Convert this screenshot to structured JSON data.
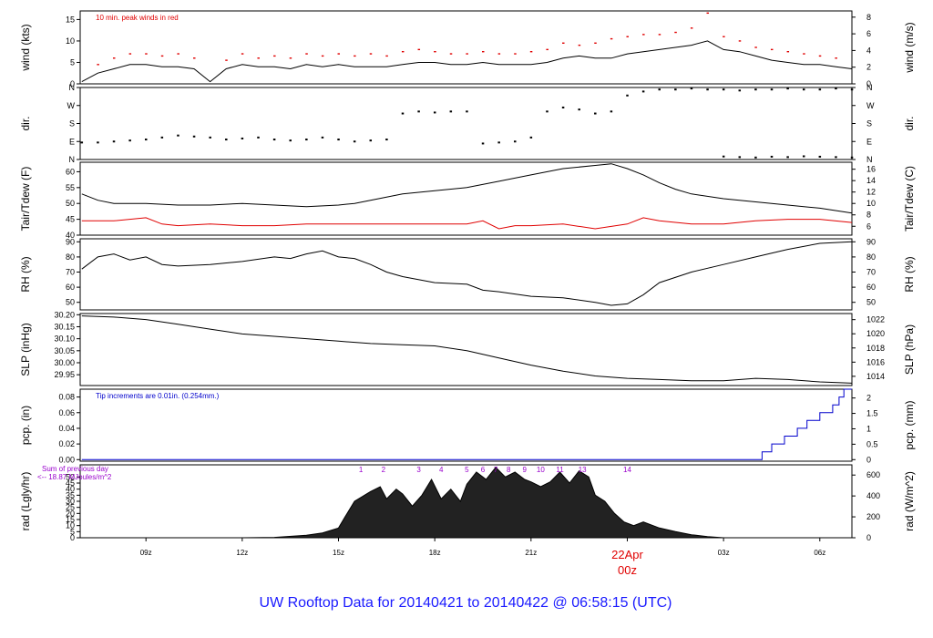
{
  "footer_title": "UW Rooftop Data for 20140421  to  20140422 @ 06:58:15  (UTC)",
  "colors": {
    "black": "#000000",
    "red": "#e00000",
    "blue": "#0000cc",
    "purple": "#9900cc",
    "footer": "#1a1aff"
  },
  "time_axis": {
    "x_start_hours": 6.95,
    "x_end_hours": 31.0,
    "ticks": [
      {
        "hours": 9,
        "label": "09z"
      },
      {
        "hours": 12,
        "label": "12z"
      },
      {
        "hours": 15,
        "label": "15z"
      },
      {
        "hours": 18,
        "label": "18z"
      },
      {
        "hours": 21,
        "label": "21z"
      },
      {
        "hours": 24,
        "label": "00z",
        "highlight": "22Apr"
      },
      {
        "hours": 27,
        "label": "03z"
      },
      {
        "hours": 30,
        "label": "06z"
      }
    ]
  },
  "chart_data": [
    {
      "type": "line",
      "id": "wind",
      "ylabel_left": "wind (kts)",
      "ylabel_right": "wind (m/s)",
      "ylim": [
        0,
        17
      ],
      "yticks_left": [
        0,
        5,
        10,
        15
      ],
      "yticks_right": [
        0,
        2,
        4,
        6,
        8
      ],
      "right_scale": 0.5144,
      "annotation": "10 min. peak winds in red",
      "series": [
        {
          "x": [
            7.0,
            7.5,
            8.0,
            8.5,
            9.0,
            9.5,
            10.0,
            10.5,
            11.0,
            11.5,
            12.0,
            12.5,
            13.0,
            13.5,
            14.0,
            14.5,
            15.0,
            15.5,
            16.0,
            16.5,
            17.0,
            17.5,
            18.0,
            18.5,
            19.0,
            19.5,
            20.0,
            20.5,
            21.0,
            21.5,
            22.0,
            22.5,
            23.0,
            23.5,
            24.0,
            24.5,
            25.0,
            25.5,
            26.0,
            26.5,
            27.0,
            27.5,
            28.0,
            28.5,
            29.0,
            29.5,
            30.0,
            30.5,
            31.0
          ],
          "values": [
            0.5,
            2.5,
            3.5,
            4.5,
            4.5,
            4.0,
            4.0,
            3.5,
            0.5,
            3.5,
            4.5,
            4.0,
            4.0,
            3.5,
            4.5,
            4.0,
            4.5,
            4.0,
            4.0,
            4.0,
            4.5,
            5.0,
            5.0,
            4.5,
            4.5,
            5.0,
            4.5,
            4.5,
            4.5,
            5.0,
            6.0,
            6.5,
            6.0,
            6.0,
            7.0,
            7.5,
            8.0,
            8.5,
            9.0,
            10.0,
            8.0,
            7.5,
            6.5,
            5.5,
            5.0,
            4.5,
            4.5,
            4.0,
            3.5
          ]
        },
        {
          "name": "10 min. peak winds in red",
          "x": [
            7.5,
            8.0,
            8.5,
            9.0,
            9.5,
            10.0,
            10.5,
            11.5,
            12.0,
            12.5,
            13.0,
            13.5,
            14.0,
            14.5,
            15.0,
            15.5,
            16.0,
            16.5,
            17.0,
            17.5,
            18.0,
            18.5,
            19.0,
            19.5,
            20.0,
            20.5,
            21.0,
            21.5,
            22.0,
            22.5,
            23.0,
            23.5,
            24.0,
            24.5,
            25.0,
            25.5,
            26.0,
            26.5,
            27.0,
            27.5,
            28.0,
            28.5,
            29.0,
            29.5,
            30.0,
            30.5
          ],
          "values": [
            4.5,
            6.0,
            7.0,
            7.0,
            6.5,
            7.0,
            6.0,
            5.5,
            7.0,
            6.0,
            6.5,
            6.0,
            7.0,
            6.5,
            7.0,
            6.5,
            7.0,
            6.5,
            7.5,
            8.0,
            7.5,
            7.0,
            7.0,
            7.5,
            7.0,
            7.0,
            7.5,
            8.0,
            9.5,
            9.0,
            9.5,
            10.5,
            11.0,
            11.5,
            11.5,
            12.0,
            13.0,
            16.5,
            11.0,
            10.0,
            8.5,
            8.0,
            7.5,
            7.0,
            6.5,
            6.0
          ]
        }
      ]
    },
    {
      "type": "scatter",
      "id": "dir",
      "ylabel_left": "dir.",
      "ylabel_right": "dir.",
      "ylim": [
        0,
        360
      ],
      "tick_labels": [
        "N",
        "E",
        "S",
        "W",
        "N"
      ],
      "tick_values": [
        0,
        90,
        180,
        270,
        360
      ],
      "series": [
        {
          "x": [
            7.0,
            7.5,
            8.0,
            8.5,
            9.0,
            9.5,
            10.0,
            10.5,
            11.0,
            11.5,
            12.0,
            12.5,
            13.0,
            13.5,
            14.0,
            14.5,
            15.0,
            15.5,
            16.0,
            16.5,
            17.0,
            17.5,
            18.0,
            18.5,
            19.0,
            19.5,
            20.0,
            20.5,
            21.0,
            21.5,
            22.0,
            22.5,
            23.0,
            23.5,
            24.0,
            24.5,
            25.0,
            25.5,
            26.0,
            26.5,
            27.0,
            27.5,
            28.0,
            28.5,
            29.0,
            29.5,
            30.0,
            30.5,
            31.0
          ],
          "values": [
            85,
            85,
            90,
            95,
            100,
            110,
            120,
            115,
            110,
            100,
            105,
            110,
            100,
            95,
            100,
            110,
            100,
            90,
            95,
            100,
            230,
            240,
            235,
            240,
            240,
            80,
            85,
            90,
            110,
            240,
            260,
            250,
            230,
            240,
            320,
            340,
            350,
            350,
            355,
            350,
            350,
            345,
            350,
            350,
            355,
            350,
            350,
            355,
            350
          ]
        },
        {
          "x": [
            27.0,
            27.5,
            28.0,
            28.5,
            29.0,
            29.5,
            30.0,
            30.5,
            31.0
          ],
          "values": [
            15,
            12,
            10,
            14,
            12,
            16,
            14,
            12,
            10
          ]
        }
      ]
    },
    {
      "type": "line",
      "id": "temp",
      "ylabel_left": "Tair/Tdew (F)",
      "ylabel_right": "Tair/Tdew (C)",
      "ylim": [
        40,
        63
      ],
      "yticks_left": [
        40,
        45,
        50,
        55,
        60
      ],
      "yticks_right": [
        6,
        8,
        10,
        12,
        14,
        16
      ],
      "series": [
        {
          "name": "Tair",
          "x": [
            7.0,
            7.5,
            8.0,
            9.0,
            10.0,
            11.0,
            12.0,
            13.0,
            14.0,
            15.0,
            15.5,
            16.0,
            16.5,
            17.0,
            18.0,
            19.0,
            20.0,
            21.0,
            22.0,
            23.0,
            23.5,
            24.0,
            24.5,
            25.0,
            25.5,
            26.0,
            27.0,
            28.0,
            29.0,
            30.0,
            31.0
          ],
          "values": [
            53.0,
            51.0,
            50.0,
            50.0,
            49.5,
            49.5,
            50.0,
            49.5,
            49.0,
            49.5,
            50.0,
            51.0,
            52.0,
            53.0,
            54.0,
            55.0,
            57.0,
            59.0,
            61.0,
            62.0,
            62.5,
            61.0,
            59.0,
            56.5,
            54.5,
            53.0,
            51.5,
            50.5,
            49.5,
            48.5,
            47.0
          ]
        },
        {
          "name": "Tdew",
          "x": [
            7.0,
            8.0,
            9.0,
            9.5,
            10.0,
            11.0,
            12.0,
            13.0,
            14.0,
            15.0,
            16.0,
            17.0,
            18.0,
            19.0,
            19.5,
            20.0,
            20.5,
            21.0,
            22.0,
            23.0,
            24.0,
            24.5,
            25.0,
            26.0,
            27.0,
            28.0,
            29.0,
            30.0,
            31.0
          ],
          "values": [
            44.5,
            44.5,
            45.5,
            43.5,
            43.0,
            43.5,
            43.0,
            43.0,
            43.5,
            43.5,
            43.5,
            43.5,
            43.5,
            43.5,
            44.5,
            42.0,
            43.0,
            43.0,
            43.5,
            42.0,
            43.5,
            45.5,
            44.5,
            43.5,
            43.5,
            44.5,
            45.0,
            45.0,
            44.0
          ]
        }
      ]
    },
    {
      "type": "line",
      "id": "rh",
      "ylabel_left": "RH (%)",
      "ylabel_right": "RH (%)",
      "ylim": [
        45,
        92
      ],
      "yticks_left": [
        50,
        60,
        70,
        80,
        90
      ],
      "yticks_right": [
        50,
        60,
        70,
        80,
        90
      ],
      "series": [
        {
          "x": [
            7.0,
            7.5,
            8.0,
            8.5,
            9.0,
            9.5,
            10.0,
            11.0,
            12.0,
            13.0,
            13.5,
            14.0,
            14.5,
            15.0,
            15.5,
            16.0,
            16.5,
            17.0,
            18.0,
            19.0,
            19.5,
            20.0,
            21.0,
            22.0,
            23.0,
            23.5,
            24.0,
            24.5,
            25.0,
            26.0,
            27.0,
            28.0,
            29.0,
            30.0,
            31.0
          ],
          "values": [
            72,
            80,
            82,
            78,
            80,
            75,
            74,
            75,
            77,
            80,
            79,
            82,
            84,
            80,
            79,
            75,
            70,
            67,
            63,
            62,
            58,
            57,
            54,
            53,
            50,
            48,
            49,
            55,
            63,
            70,
            75,
            80,
            85,
            89,
            90
          ]
        }
      ]
    },
    {
      "type": "line",
      "id": "slp",
      "ylabel_left": "SLP (inHg)",
      "ylabel_right": "SLP (hPa)",
      "ylim": [
        29.905,
        30.205
      ],
      "yticks_left": [
        29.95,
        30.0,
        30.05,
        30.1,
        30.15,
        30.2
      ],
      "ytick_labels_left": [
        "29.95",
        "30.00",
        "30.05",
        "30.10",
        "30.15",
        "30.20"
      ],
      "yticks_right": [
        1014,
        1016,
        1018,
        1020,
        1022
      ],
      "series": [
        {
          "x": [
            7.0,
            8.0,
            9.0,
            10.0,
            11.0,
            12.0,
            13.0,
            14.0,
            15.0,
            16.0,
            17.0,
            18.0,
            19.0,
            20.0,
            21.0,
            22.0,
            23.0,
            24.0,
            25.0,
            26.0,
            27.0,
            28.0,
            29.0,
            30.0,
            31.0
          ],
          "values": [
            30.195,
            30.19,
            30.18,
            30.16,
            30.14,
            30.12,
            30.11,
            30.1,
            30.09,
            30.08,
            30.075,
            30.07,
            30.05,
            30.02,
            29.99,
            29.965,
            29.945,
            29.935,
            29.93,
            29.925,
            29.925,
            29.935,
            29.93,
            29.92,
            29.915
          ]
        }
      ]
    },
    {
      "type": "area",
      "id": "pcp",
      "ylabel_left": "pcp. (in)",
      "ylabel_right": "pcp. (mm)",
      "ylim": [
        -0.002,
        0.09
      ],
      "yticks_left": [
        0.0,
        0.02,
        0.04,
        0.06,
        0.08
      ],
      "ytick_labels_left": [
        "0.00",
        "0.02",
        "0.04",
        "0.06",
        "0.08"
      ],
      "yticks_right": [
        0,
        0.5,
        1,
        1.5,
        2
      ],
      "annotation": "Tip increments are 0.01in. (0.254mm.)",
      "series": [
        {
          "x": [
            7.0,
            28.2,
            28.2,
            28.5,
            28.5,
            28.9,
            28.9,
            29.3,
            29.3,
            29.6,
            29.6,
            30.0,
            30.0,
            30.4,
            30.4,
            30.6,
            30.6,
            30.75,
            30.75,
            30.85,
            30.85,
            31.0
          ],
          "values": [
            0.0,
            0.0,
            0.01,
            0.01,
            0.02,
            0.02,
            0.03,
            0.03,
            0.04,
            0.04,
            0.05,
            0.05,
            0.06,
            0.06,
            0.07,
            0.07,
            0.08,
            0.08,
            0.09,
            0.09,
            0.09,
            0.09
          ]
        }
      ]
    },
    {
      "type": "area",
      "id": "rad",
      "ylabel_left": "rad (Lgly/hr)",
      "ylabel_right": "rad (W/m^2)",
      "ylim": [
        0,
        60
      ],
      "yticks_left": [
        0,
        5,
        10,
        15,
        20,
        25,
        30,
        35,
        40,
        45,
        50
      ],
      "yticks_right": [
        0,
        200,
        400,
        600
      ],
      "annotation_lines": [
        "Sum of previous day",
        "<-- 18.87 MJoules/m^2"
      ],
      "hour_markers": [
        {
          "hours": 15.7,
          "label": "1"
        },
        {
          "hours": 16.4,
          "label": "2"
        },
        {
          "hours": 17.5,
          "label": "3"
        },
        {
          "hours": 18.2,
          "label": "4"
        },
        {
          "hours": 19.0,
          "label": "5"
        },
        {
          "hours": 19.5,
          "label": "6"
        },
        {
          "hours": 19.9,
          "label": "7"
        },
        {
          "hours": 20.3,
          "label": "8"
        },
        {
          "hours": 20.8,
          "label": "9"
        },
        {
          "hours": 21.3,
          "label": "10"
        },
        {
          "hours": 21.9,
          "label": "11"
        },
        {
          "hours": 22.6,
          "label": "13"
        },
        {
          "hours": 24.0,
          "label": "14"
        }
      ],
      "series": [
        {
          "x": [
            7.0,
            12.0,
            13.0,
            14.0,
            14.5,
            15.0,
            15.2,
            15.5,
            16.0,
            16.3,
            16.5,
            16.8,
            17.0,
            17.3,
            17.6,
            17.9,
            18.2,
            18.5,
            18.8,
            19.0,
            19.3,
            19.6,
            19.9,
            20.2,
            20.5,
            20.8,
            21.0,
            21.3,
            21.6,
            21.9,
            22.2,
            22.5,
            22.8,
            23.0,
            23.3,
            23.6,
            23.9,
            24.2,
            24.5,
            25.0,
            25.5,
            26.0,
            26.5,
            27.0,
            31.0
          ],
          "values": [
            0,
            0,
            0.3,
            2,
            4,
            8,
            17,
            30,
            38,
            42,
            32,
            40,
            36,
            26,
            35,
            48,
            32,
            40,
            30,
            44,
            54,
            48,
            58,
            50,
            54,
            48,
            46,
            42,
            46,
            54,
            45,
            55,
            50,
            35,
            30,
            20,
            13,
            10,
            13,
            8,
            5,
            2.5,
            1,
            0,
            0
          ]
        }
      ]
    }
  ]
}
